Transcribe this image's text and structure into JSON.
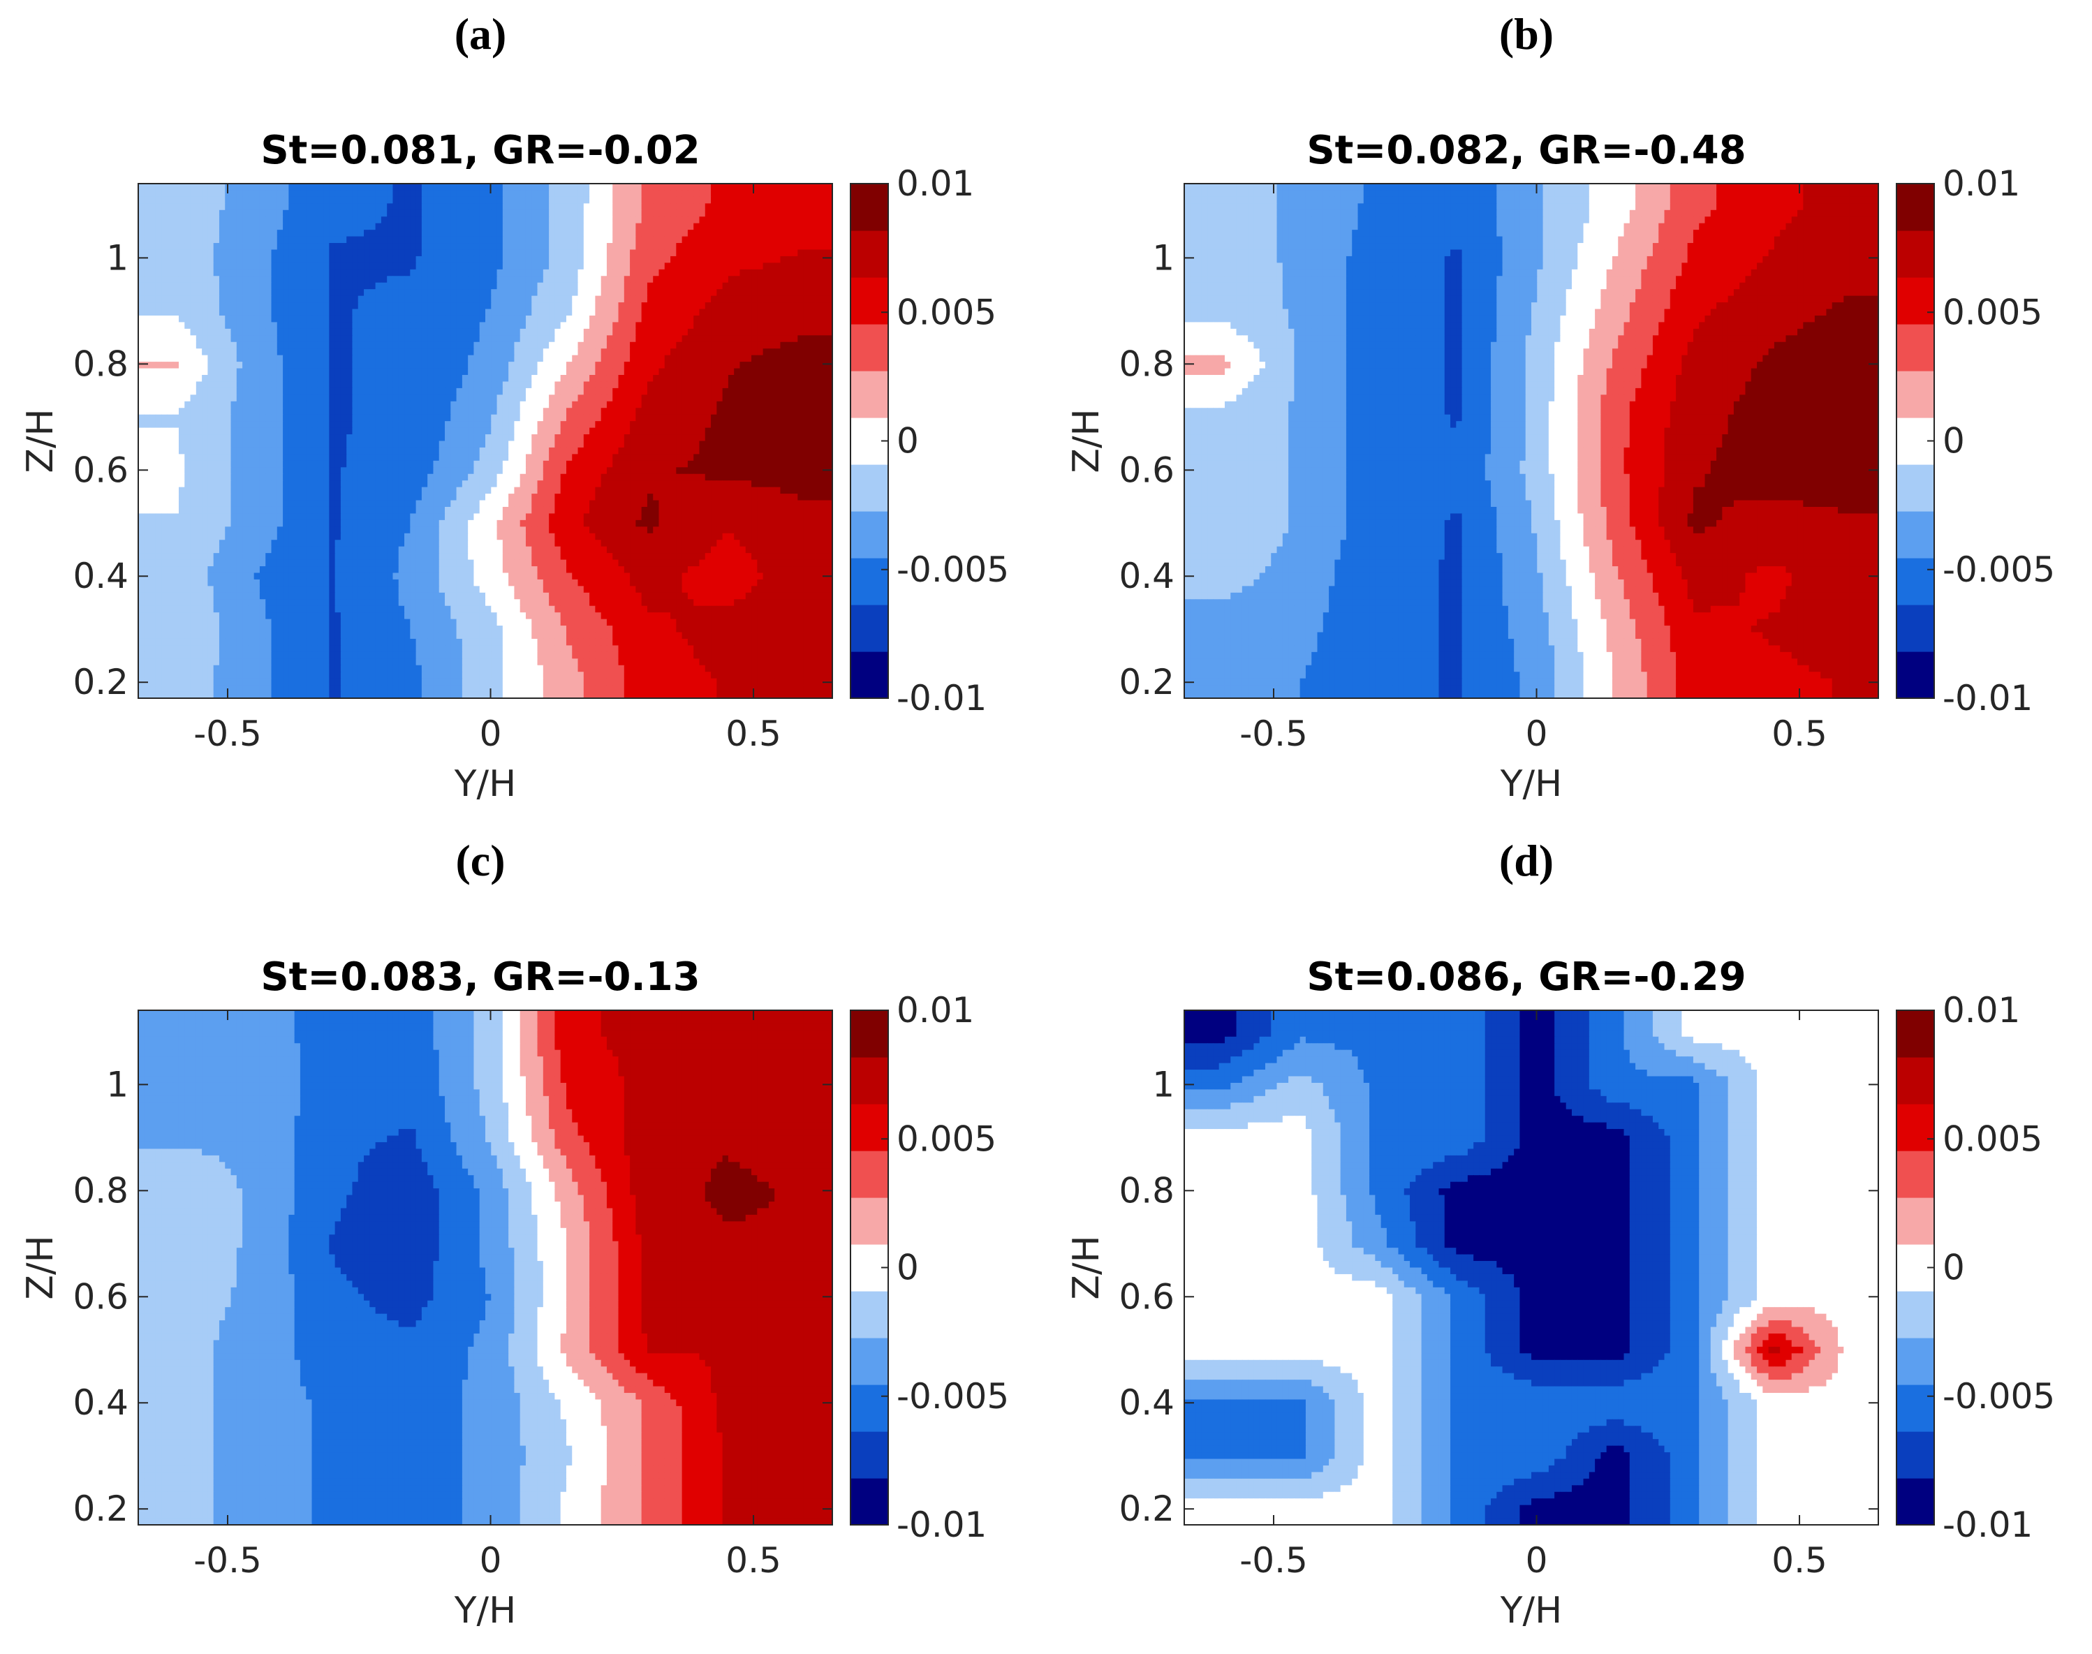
{
  "colorbar": {
    "tick_labels": [
      "0.01",
      "0.005",
      "0",
      "-0.005",
      "-0.01"
    ],
    "tick_values": [
      0.01,
      0.005,
      0,
      -0.005,
      -0.01
    ],
    "range": [
      -0.01,
      0.01
    ],
    "colors": [
      "#000080",
      "#0a3fbe",
      "#1a6fe0",
      "#5c9ff0",
      "#a7ccf7",
      "#ffffff",
      "#f7a8a8",
      "#f05050",
      "#e00000",
      "#bb0000",
      "#800000"
    ]
  },
  "chart_data": [
    {
      "type": "heatmap",
      "panel_label": "(a)",
      "title": "St=0.081, GR=-0.02",
      "xlabel": "Y/H",
      "ylabel": "Z/H",
      "xlim": [
        -0.67,
        0.65
      ],
      "ylim": [
        0.17,
        1.14
      ],
      "xticks": [
        -0.5,
        0,
        0.5
      ],
      "xtick_labels": [
        "-0.5",
        "0",
        "0.5"
      ],
      "yticks": [
        0.2,
        0.4,
        0.6,
        0.8,
        1.0
      ],
      "ytick_labels": [
        "0.2",
        "0.4",
        "0.6",
        "0.8",
        "1"
      ],
      "clim": [
        -0.01,
        0.01
      ],
      "field": {
        "y": [
          -0.6,
          -0.45,
          -0.3,
          -0.15,
          0.0,
          0.15,
          0.3,
          0.45,
          0.6
        ],
        "z": [
          1.1,
          1.0,
          0.9,
          0.8,
          0.7,
          0.6,
          0.5,
          0.4,
          0.3,
          0.2
        ],
        "values": [
          [
            -0.0015,
            -0.0035,
            -0.006,
            -0.0065,
            -0.005,
            -0.002,
            0.003,
            0.005,
            0.0055
          ],
          [
            -0.0015,
            -0.004,
            -0.0065,
            -0.0065,
            -0.005,
            -0.002,
            0.004,
            0.006,
            0.0065
          ],
          [
            -0.001,
            -0.004,
            -0.0065,
            -0.006,
            -0.0045,
            -0.001,
            0.005,
            0.007,
            0.0075
          ],
          [
            0.001,
            -0.0035,
            -0.0065,
            -0.006,
            -0.004,
            0.001,
            0.006,
            0.008,
            0.009
          ],
          [
            -0.001,
            -0.0035,
            -0.0065,
            -0.006,
            -0.003,
            0.003,
            0.007,
            0.0085,
            0.0095
          ],
          [
            -0.0005,
            -0.0035,
            -0.0065,
            -0.0055,
            -0.002,
            0.005,
            0.008,
            0.0085,
            0.009
          ],
          [
            -0.001,
            -0.0035,
            -0.0065,
            -0.0045,
            0.0005,
            0.006,
            0.0085,
            0.0065,
            0.0075
          ],
          [
            -0.0015,
            -0.0045,
            -0.0065,
            -0.004,
            0.0,
            0.0045,
            0.007,
            0.0055,
            0.0075
          ],
          [
            -0.001,
            -0.004,
            -0.0065,
            -0.0045,
            -0.0015,
            0.003,
            0.006,
            0.007,
            0.0075
          ],
          [
            -0.0015,
            -0.004,
            -0.0065,
            -0.005,
            -0.0015,
            0.002,
            0.0055,
            0.0065,
            0.007
          ]
        ]
      }
    },
    {
      "type": "heatmap",
      "panel_label": "(b)",
      "title": "St=0.082, GR=-0.48",
      "xlabel": "Y/H",
      "ylabel": "Z/H",
      "xlim": [
        -0.67,
        0.65
      ],
      "ylim": [
        0.17,
        1.14
      ],
      "xticks": [
        -0.5,
        0,
        0.5
      ],
      "xtick_labels": [
        "-0.5",
        "0",
        "0.5"
      ],
      "yticks": [
        0.2,
        0.4,
        0.6,
        0.8,
        1.0
      ],
      "ytick_labels": [
        "0.2",
        "0.4",
        "0.6",
        "0.8",
        "1"
      ],
      "clim": [
        -0.01,
        0.01
      ],
      "field": {
        "y": [
          -0.6,
          -0.45,
          -0.3,
          -0.15,
          0.0,
          0.15,
          0.3,
          0.45,
          0.6
        ],
        "z": [
          1.1,
          1.0,
          0.9,
          0.8,
          0.7,
          0.6,
          0.5,
          0.4,
          0.3,
          0.2
        ],
        "values": [
          [
            -0.002,
            -0.003,
            -0.005,
            -0.006,
            -0.003,
            0.0,
            0.004,
            0.006,
            0.007
          ],
          [
            -0.002,
            -0.003,
            -0.0055,
            -0.0065,
            -0.003,
            0.001,
            0.005,
            0.0065,
            0.0075
          ],
          [
            -0.0015,
            -0.003,
            -0.0055,
            -0.0065,
            -0.0025,
            0.002,
            0.006,
            0.0075,
            0.0085
          ],
          [
            0.0015,
            -0.003,
            -0.0055,
            -0.0065,
            -0.002,
            0.003,
            0.007,
            0.0085,
            0.0095
          ],
          [
            -0.0015,
            -0.003,
            -0.0055,
            -0.0065,
            -0.002,
            0.004,
            0.0075,
            0.009,
            0.0095
          ],
          [
            -0.001,
            -0.003,
            -0.0055,
            -0.006,
            -0.002,
            0.004,
            0.008,
            0.009,
            0.009
          ],
          [
            -0.001,
            -0.003,
            -0.0055,
            -0.0065,
            -0.0025,
            0.0035,
            0.0085,
            0.0075,
            0.008
          ],
          [
            -0.002,
            -0.0035,
            -0.006,
            -0.0065,
            -0.003,
            0.0025,
            0.007,
            0.006,
            0.0075
          ],
          [
            -0.0035,
            -0.004,
            -0.006,
            -0.0065,
            -0.0035,
            0.0015,
            0.006,
            0.0065,
            0.007
          ],
          [
            -0.004,
            -0.0045,
            -0.006,
            -0.0065,
            -0.004,
            0.001,
            0.0055,
            0.006,
            0.0065
          ]
        ]
      }
    },
    {
      "type": "heatmap",
      "panel_label": "(c)",
      "title": "St=0.083, GR=-0.13",
      "xlabel": "Y/H",
      "ylabel": "Z/H",
      "xlim": [
        -0.67,
        0.65
      ],
      "ylim": [
        0.17,
        1.14
      ],
      "xticks": [
        -0.5,
        0,
        0.5
      ],
      "xtick_labels": [
        "-0.5",
        "0",
        "0.5"
      ],
      "yticks": [
        0.2,
        0.4,
        0.6,
        0.8,
        1.0
      ],
      "ytick_labels": [
        "0.2",
        "0.4",
        "0.6",
        "0.8",
        "1"
      ],
      "clim": [
        -0.01,
        0.01
      ],
      "field": {
        "y": [
          -0.6,
          -0.45,
          -0.3,
          -0.15,
          0.0,
          0.15,
          0.3,
          0.45,
          0.6
        ],
        "z": [
          1.1,
          1.0,
          0.9,
          0.8,
          0.7,
          0.6,
          0.5,
          0.4,
          0.3,
          0.2
        ],
        "values": [
          [
            -0.004,
            -0.0035,
            -0.0055,
            -0.0055,
            -0.002,
            0.006,
            0.007,
            0.007,
            0.0065
          ],
          [
            -0.004,
            -0.003,
            -0.0055,
            -0.006,
            -0.002,
            0.005,
            0.007,
            0.007,
            0.0065
          ],
          [
            -0.003,
            -0.003,
            -0.006,
            -0.0065,
            -0.0025,
            0.004,
            0.0075,
            0.008,
            0.0075
          ],
          [
            -0.0015,
            -0.003,
            -0.006,
            -0.0075,
            -0.004,
            0.002,
            0.0075,
            0.0085,
            0.008
          ],
          [
            -0.0015,
            -0.003,
            -0.0065,
            -0.0075,
            -0.004,
            0.001,
            0.007,
            0.008,
            0.008
          ],
          [
            -0.002,
            -0.003,
            -0.006,
            -0.007,
            -0.0045,
            0.001,
            0.007,
            0.007,
            0.007
          ],
          [
            -0.002,
            -0.0035,
            -0.0055,
            -0.006,
            -0.004,
            0.0015,
            0.0065,
            0.0065,
            0.0065
          ],
          [
            -0.002,
            -0.0035,
            -0.005,
            -0.0055,
            -0.004,
            -0.0005,
            0.003,
            0.007,
            0.0075
          ],
          [
            -0.002,
            -0.0035,
            -0.005,
            -0.0055,
            -0.004,
            -0.001,
            0.003,
            0.0065,
            0.0075
          ],
          [
            -0.002,
            -0.0035,
            -0.005,
            -0.0055,
            -0.004,
            -0.0005,
            0.003,
            0.0065,
            0.0075
          ]
        ]
      }
    },
    {
      "type": "heatmap",
      "panel_label": "(d)",
      "title": "St=0.086, GR=-0.29",
      "xlabel": "Y/H",
      "ylabel": "Z/H",
      "xlim": [
        -0.67,
        0.65
      ],
      "ylim": [
        0.17,
        1.14
      ],
      "xticks": [
        -0.5,
        0,
        0.5
      ],
      "xtick_labels": [
        "-0.5",
        "0",
        "0.5"
      ],
      "yticks": [
        0.2,
        0.4,
        0.6,
        0.8,
        1.0
      ],
      "ytick_labels": [
        "0.2",
        "0.4",
        "0.6",
        "0.8",
        "1"
      ],
      "clim": [
        -0.01,
        0.01
      ],
      "field": {
        "y": [
          -0.6,
          -0.45,
          -0.3,
          -0.15,
          0.0,
          0.15,
          0.3,
          0.45,
          0.6
        ],
        "z": [
          1.1,
          1.0,
          0.9,
          0.8,
          0.7,
          0.6,
          0.5,
          0.4,
          0.3,
          0.2
        ],
        "values": [
          [
            -0.009,
            -0.005,
            -0.005,
            -0.005,
            -0.009,
            -0.005,
            0.0,
            0.0,
            0.0
          ],
          [
            -0.005,
            -0.002,
            -0.005,
            -0.005,
            -0.009,
            -0.005,
            -0.005,
            0.0,
            0.0
          ],
          [
            0.0,
            0.0,
            -0.005,
            -0.005,
            -0.009,
            -0.009,
            -0.005,
            0.0,
            0.0
          ],
          [
            0.0,
            0.0,
            -0.005,
            -0.009,
            -0.009,
            -0.009,
            -0.005,
            0.0,
            0.0
          ],
          [
            0.0,
            0.0,
            -0.004,
            -0.009,
            -0.009,
            -0.009,
            -0.005,
            0.0,
            0.0
          ],
          [
            0.0,
            0.0,
            0.0,
            -0.005,
            -0.009,
            -0.009,
            -0.005,
            0.0,
            0.0
          ],
          [
            0.0,
            0.0,
            0.0,
            -0.005,
            -0.009,
            -0.009,
            -0.005,
            0.007,
            0.0
          ],
          [
            -0.005,
            -0.005,
            0.0,
            -0.005,
            -0.005,
            -0.005,
            -0.005,
            0.0,
            0.0
          ],
          [
            -0.005,
            -0.005,
            0.0,
            -0.005,
            -0.005,
            -0.009,
            -0.005,
            0.0,
            0.0
          ],
          [
            0.0,
            0.0,
            0.0,
            -0.005,
            -0.009,
            -0.009,
            -0.005,
            0.0,
            0.0
          ]
        ]
      }
    }
  ]
}
